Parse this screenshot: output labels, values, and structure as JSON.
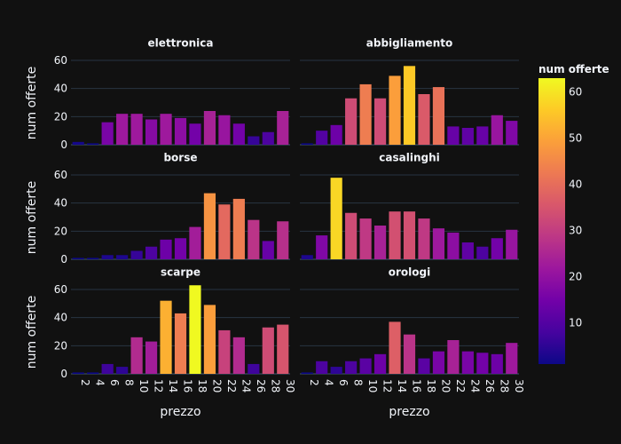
{
  "chart_data": {
    "type": "bar",
    "xlabel": "prezzo",
    "ylabel": "num offerte",
    "x": [
      2,
      4,
      6,
      8,
      10,
      12,
      14,
      16,
      18,
      20,
      22,
      24,
      26,
      28,
      30
    ],
    "ylim": [
      0,
      64
    ],
    "yticks": [
      0,
      20,
      40,
      60
    ],
    "colorbar": {
      "title": "num offerte",
      "range": [
        1,
        63
      ],
      "ticks": [
        10,
        20,
        30,
        40,
        50,
        60
      ],
      "colorscale": [
        "#0d0887",
        "#46039f",
        "#7201a8",
        "#9c179e",
        "#bd3786",
        "#d8576b",
        "#ed7953",
        "#fb9f3a",
        "#fdca26",
        "#f0f921"
      ]
    },
    "panels": [
      {
        "name": "elettronica",
        "values": [
          2,
          1,
          16,
          22,
          22,
          18,
          22,
          19,
          15,
          24,
          21,
          15,
          6,
          9,
          24
        ]
      },
      {
        "name": "abbigliamento",
        "values": [
          1,
          10,
          14,
          33,
          43,
          33,
          49,
          56,
          36,
          41,
          13,
          12,
          13,
          21,
          17
        ]
      },
      {
        "name": "borse",
        "values": [
          1,
          1,
          3,
          3,
          6,
          9,
          14,
          15,
          23,
          47,
          39,
          43,
          28,
          13,
          27
        ]
      },
      {
        "name": "casalinghi",
        "values": [
          3,
          17,
          58,
          33,
          29,
          24,
          34,
          34,
          29,
          22,
          19,
          12,
          9,
          15,
          21
        ]
      },
      {
        "name": "scarpe",
        "values": [
          1,
          1,
          7,
          5,
          26,
          23,
          52,
          43,
          63,
          49,
          31,
          26,
          7,
          33,
          35
        ]
      },
      {
        "name": "orologi",
        "values": [
          1,
          9,
          5,
          9,
          11,
          14,
          37,
          28,
          11,
          16,
          24,
          16,
          15,
          14,
          22
        ]
      }
    ]
  }
}
